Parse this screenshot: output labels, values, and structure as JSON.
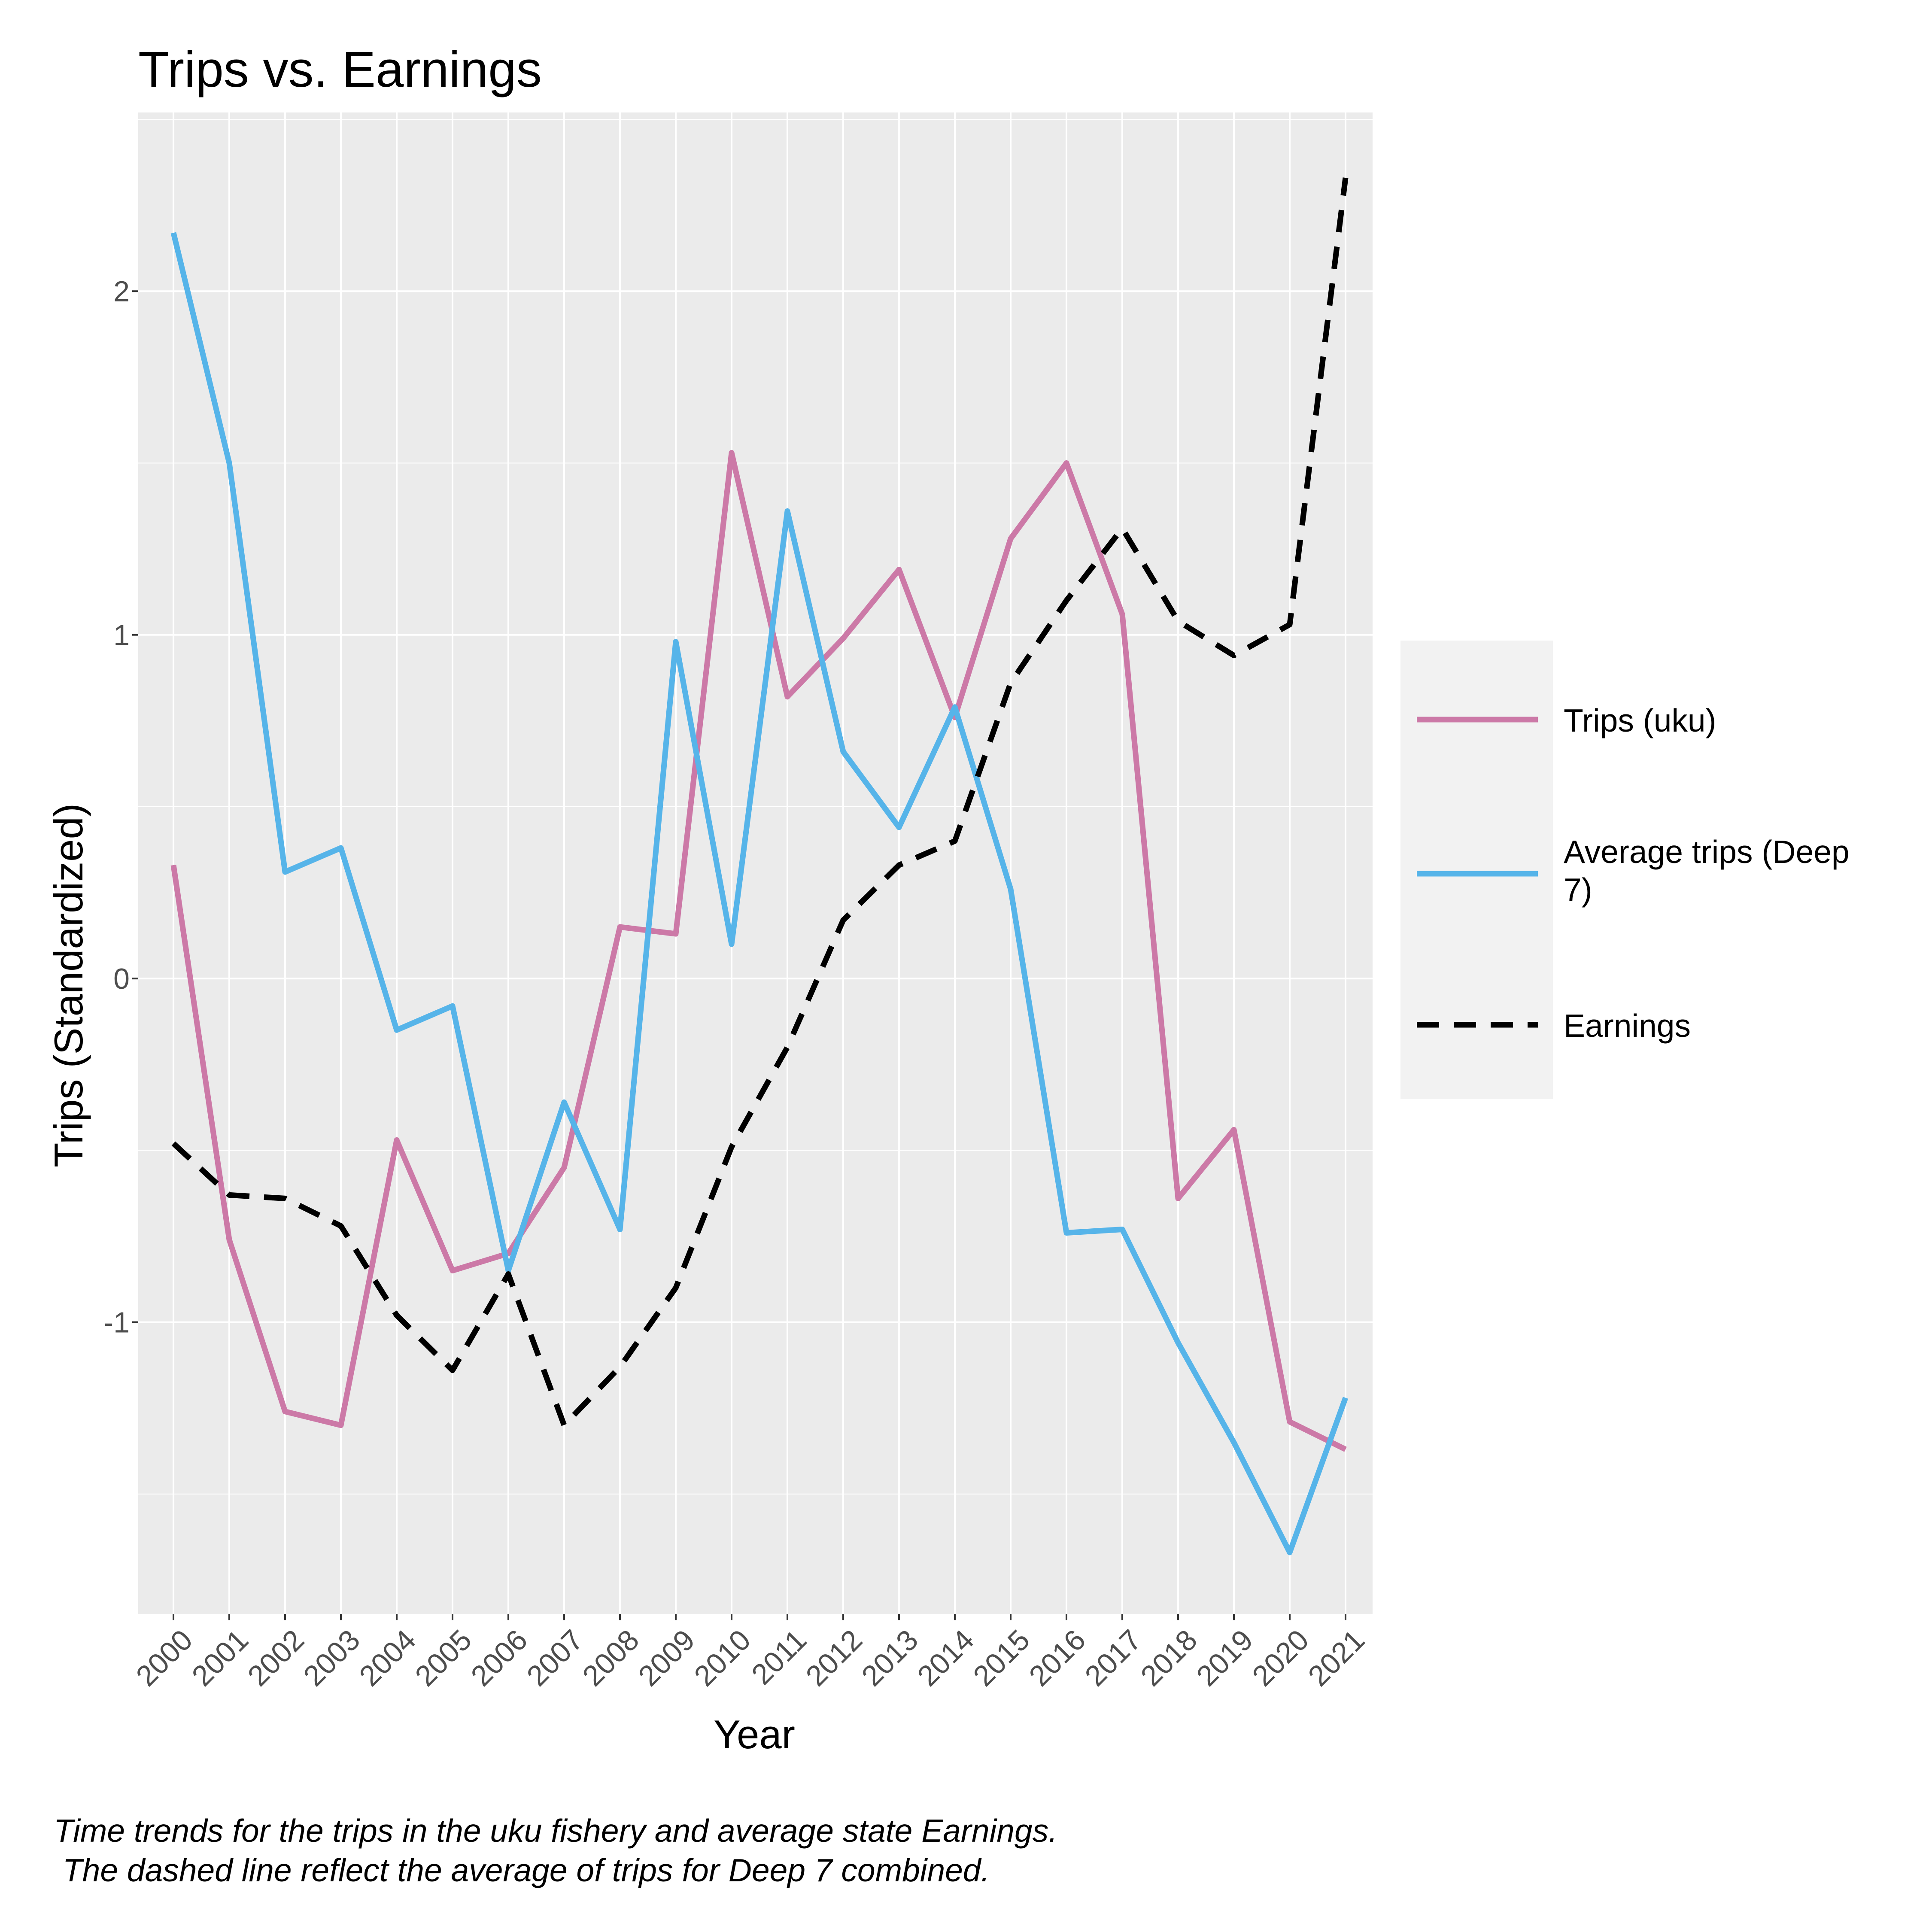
{
  "chart_data": {
    "type": "line",
    "title": "Trips vs. Earnings",
    "xlabel": "Year",
    "ylabel": "Trips (Standardized)",
    "x": [
      "2000",
      "2001",
      "2002",
      "2003",
      "2004",
      "2005",
      "2006",
      "2007",
      "2008",
      "2009",
      "2010",
      "2011",
      "2012",
      "2013",
      "2014",
      "2015",
      "2016",
      "2017",
      "2018",
      "2019",
      "2020",
      "2021"
    ],
    "ylim": [
      -1.85,
      2.52
    ],
    "yticks": [
      -1,
      0,
      1,
      2
    ],
    "ytick_labels": [
      "-1",
      "0",
      "1",
      "2"
    ],
    "grid": true,
    "legend_position": "right",
    "series": [
      {
        "name": "Trips (uku)",
        "color": "#CC79A7",
        "dash": "solid",
        "values": [
          0.33,
          -0.76,
          -1.26,
          -1.3,
          -0.47,
          -0.85,
          -0.8,
          -0.55,
          0.15,
          0.13,
          1.53,
          0.82,
          0.99,
          1.19,
          0.76,
          1.28,
          1.5,
          1.06,
          -0.64,
          -0.44,
          -1.29,
          -1.37
        ]
      },
      {
        "name": "Average trips (Deep 7)",
        "color": "#56B4E9",
        "dash": "solid",
        "values": [
          2.17,
          1.5,
          0.31,
          0.38,
          -0.15,
          -0.08,
          -0.85,
          -0.36,
          -0.73,
          0.98,
          0.1,
          1.36,
          0.66,
          0.44,
          0.79,
          0.26,
          -0.74,
          -0.73,
          -1.06,
          -1.35,
          -1.67,
          -1.22
        ]
      },
      {
        "name": "Earnings",
        "color": "#000000",
        "dash": "dashed",
        "values": [
          -0.48,
          -0.63,
          -0.64,
          -0.72,
          -0.98,
          -1.14,
          -0.86,
          -1.3,
          -1.13,
          -0.9,
          -0.49,
          -0.2,
          0.17,
          0.33,
          0.4,
          0.86,
          1.1,
          1.31,
          1.04,
          0.94,
          1.03,
          2.33
        ]
      }
    ]
  },
  "caption": {
    "line1": "Time trends for the trips in the uku fishery and average state Earnings.",
    "line2": " The dashed line reflect the average of trips for Deep 7 combined."
  }
}
